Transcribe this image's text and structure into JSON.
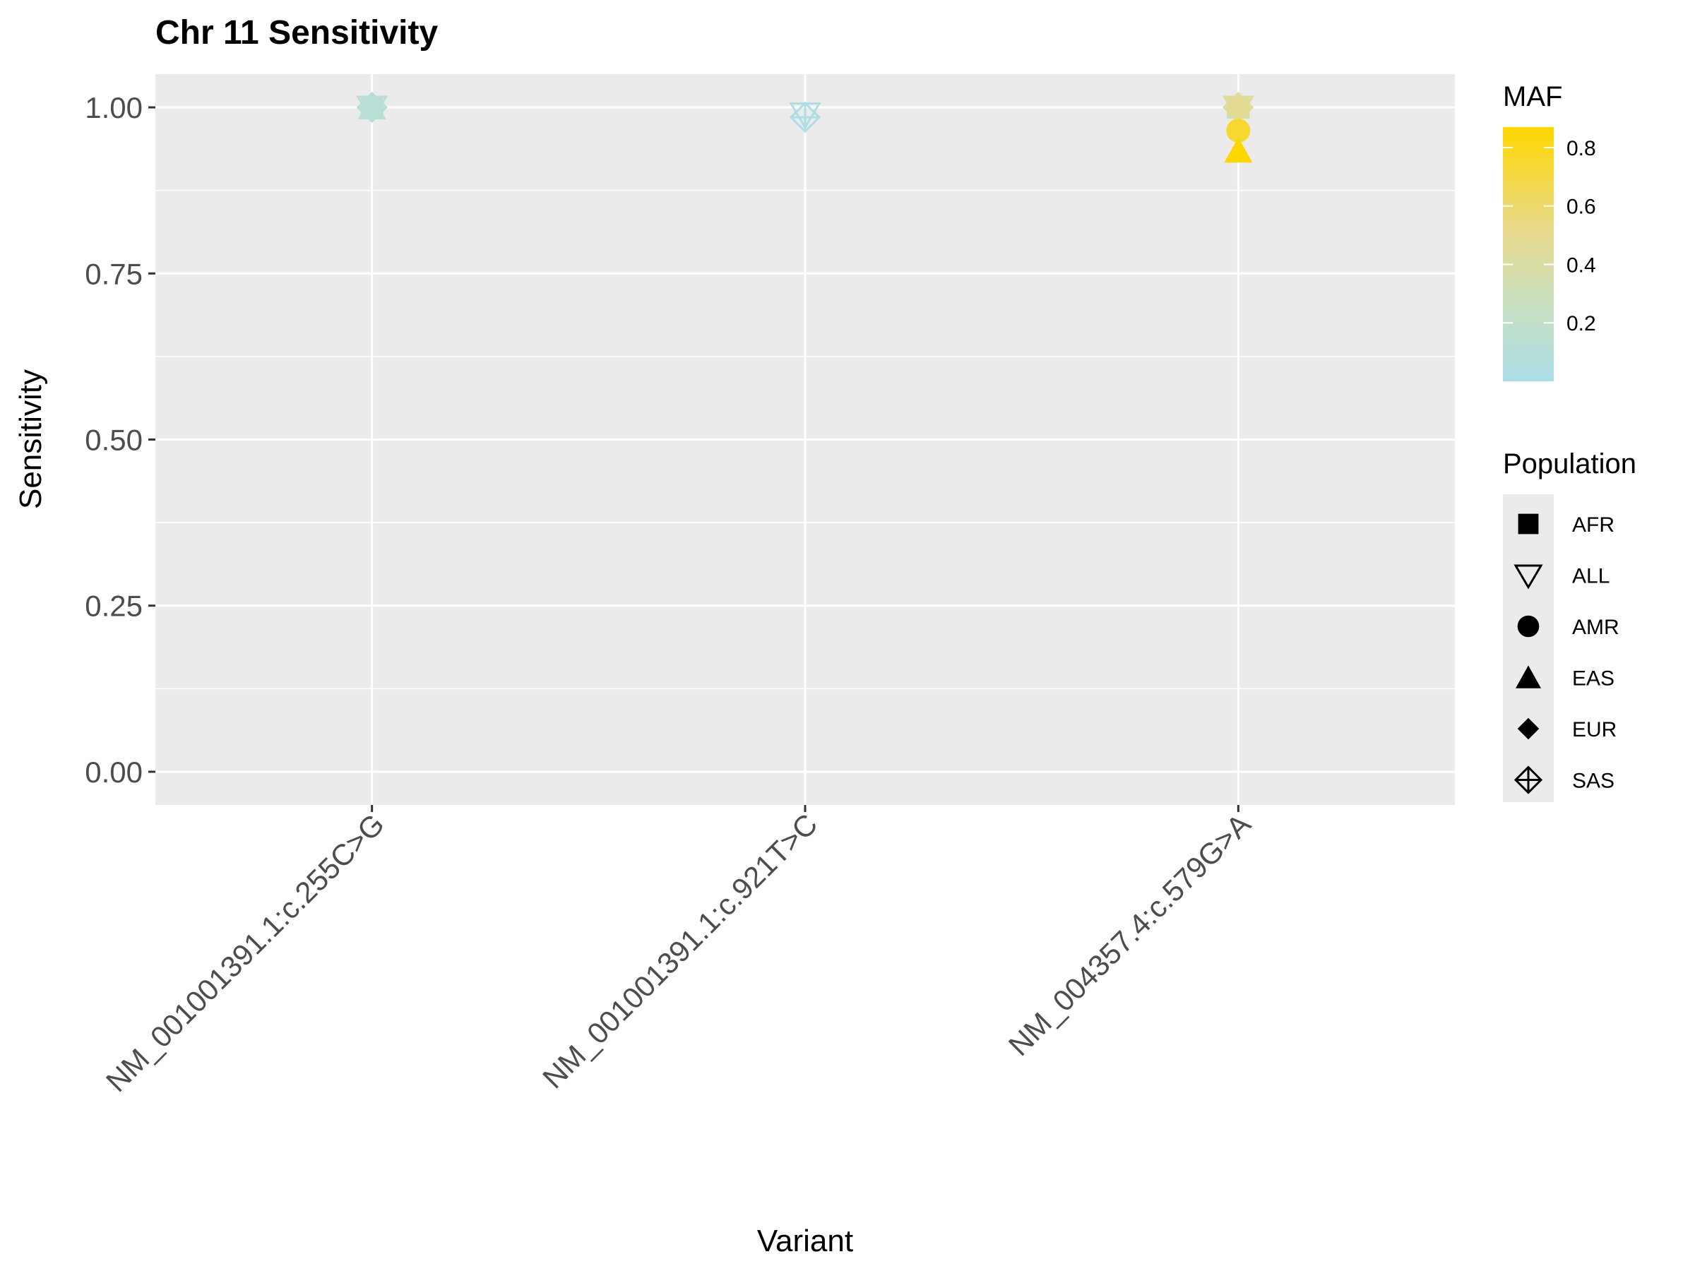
{
  "chart_data": {
    "type": "scatter",
    "title": "Chr 11 Sensitivity",
    "xlabel": "Variant",
    "ylabel": "Sensitivity",
    "categories": [
      "NM_001001391.1:c.255C>G",
      "NM_001001391.1:c.921T>C",
      "NM_004357.4:c.579G>A"
    ],
    "y_ticks": [
      "0.00",
      "0.25",
      "0.50",
      "0.75",
      "1.00"
    ],
    "ylim": [
      -0.05,
      1.05
    ],
    "grid": true,
    "legend_placement": "right",
    "color_legend": {
      "title": "MAF",
      "low_color": "#aadee6",
      "high_color": "#ffd700",
      "range": [
        0.0,
        0.87
      ],
      "ticks": [
        "0.2",
        "0.4",
        "0.6",
        "0.8"
      ]
    },
    "shape_legend": {
      "title": "Population",
      "entries": [
        {
          "label": "AFR",
          "shape": "square-filled"
        },
        {
          "label": "ALL",
          "shape": "triangle-down-open"
        },
        {
          "label": "AMR",
          "shape": "circle-filled"
        },
        {
          "label": "EAS",
          "shape": "triangle-up-filled"
        },
        {
          "label": "EUR",
          "shape": "diamond-filled"
        },
        {
          "label": "SAS",
          "shape": "diamond-plus-open"
        }
      ]
    },
    "points": [
      {
        "variant": "NM_001001391.1:c.255C>G",
        "population": "AFR",
        "sensitivity": 1.0,
        "maf": 0.12
      },
      {
        "variant": "NM_001001391.1:c.255C>G",
        "population": "ALL",
        "sensitivity": 1.0,
        "maf": 0.12
      },
      {
        "variant": "NM_001001391.1:c.255C>G",
        "population": "AMR",
        "sensitivity": 1.0,
        "maf": 0.12
      },
      {
        "variant": "NM_001001391.1:c.255C>G",
        "population": "EAS",
        "sensitivity": 1.0,
        "maf": 0.13
      },
      {
        "variant": "NM_001001391.1:c.255C>G",
        "population": "EUR",
        "sensitivity": 1.0,
        "maf": 0.12
      },
      {
        "variant": "NM_001001391.1:c.255C>G",
        "population": "SAS",
        "sensitivity": 1.0,
        "maf": 0.12
      },
      {
        "variant": "NM_001001391.1:c.921T>C",
        "population": "ALL",
        "sensitivity": 0.99,
        "maf": 0.02
      },
      {
        "variant": "NM_001001391.1:c.921T>C",
        "population": "SAS",
        "sensitivity": 0.985,
        "maf": 0.02
      },
      {
        "variant": "NM_004357.4:c.579G>A",
        "population": "AFR",
        "sensitivity": 1.0,
        "maf": 0.4
      },
      {
        "variant": "NM_004357.4:c.579G>A",
        "population": "ALL",
        "sensitivity": 1.0,
        "maf": 0.45
      },
      {
        "variant": "NM_004357.4:c.579G>A",
        "population": "EUR",
        "sensitivity": 1.0,
        "maf": 0.5
      },
      {
        "variant": "NM_004357.4:c.579G>A",
        "population": "SAS",
        "sensitivity": 1.0,
        "maf": 0.45
      },
      {
        "variant": "NM_004357.4:c.579G>A",
        "population": "AMR",
        "sensitivity": 0.965,
        "maf": 0.75
      },
      {
        "variant": "NM_004357.4:c.579G>A",
        "population": "EAS",
        "sensitivity": 0.935,
        "maf": 0.87
      }
    ]
  }
}
